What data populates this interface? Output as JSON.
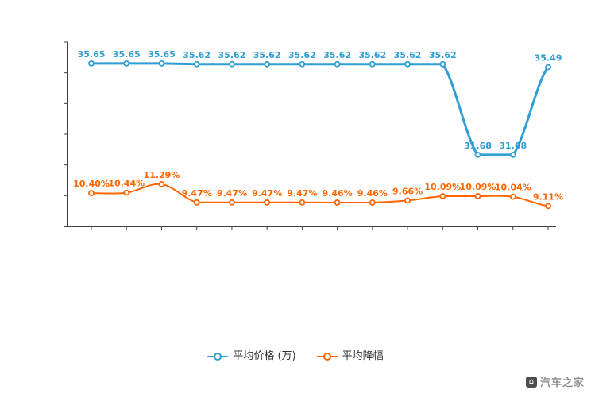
{
  "watermark": {
    "text": "汽车之家"
  },
  "legend": {
    "items": [
      {
        "label": "平均价格 (万)",
        "color": "#2f9ed5"
      },
      {
        "label": "平均降幅",
        "color": "#ff6600"
      }
    ]
  },
  "chart_data": {
    "type": "line",
    "title": "",
    "xlabel": "",
    "ylabel": "",
    "grid": false,
    "smooth": true,
    "legend_position": "bottom",
    "axis_color": "#404040",
    "x_tick_labels": [],
    "num_points": 14,
    "series": [
      {
        "name": "平均价格 (万)",
        "color": "#2f9ed5",
        "ylim": [
          28.57,
          36.51
        ],
        "values": [
          35.65,
          35.65,
          35.65,
          35.62,
          35.62,
          35.62,
          35.62,
          35.62,
          35.62,
          35.62,
          35.62,
          31.68,
          31.68,
          35.49
        ],
        "labels": [
          "35.65",
          "35.65",
          "35.65",
          "35.62",
          "35.62",
          "35.62",
          "35.62",
          "35.62",
          "35.62",
          "35.62",
          "35.62",
          "31.68",
          "31.68",
          "35.49"
        ]
      },
      {
        "name": "平均降幅",
        "color": "#ff6600",
        "ylim": [
          7.07,
          25.37
        ],
        "values": [
          10.4,
          10.44,
          11.29,
          9.47,
          9.47,
          9.47,
          9.47,
          9.46,
          9.46,
          9.66,
          10.09,
          10.09,
          10.04,
          9.11
        ],
        "labels": [
          "10.40%",
          "10.44%",
          "11.29%",
          "9.47%",
          "9.47%",
          "9.47%",
          "9.47%",
          "9.46%",
          "9.46%",
          "9.66%",
          "10.09%",
          "10.09%",
          "10.04%",
          "9.11%"
        ]
      }
    ]
  }
}
